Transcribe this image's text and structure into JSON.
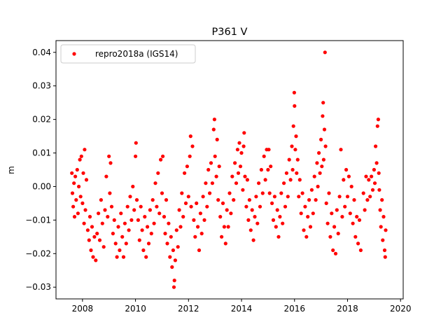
{
  "chart_data": {
    "type": "scatter",
    "title": "P361 V",
    "xlabel": "",
    "ylabel": "m",
    "xlim": [
      2007.0,
      2020.1
    ],
    "ylim": [
      -0.0335,
      0.0435
    ],
    "xticks": [
      2008,
      2010,
      2012,
      2014,
      2016,
      2018,
      2020
    ],
    "xtick_labels": [
      "2008",
      "2010",
      "2012",
      "2014",
      "2016",
      "2018",
      "2020"
    ],
    "yticks": [
      -0.03,
      -0.02,
      -0.01,
      0.0,
      0.01,
      0.02,
      0.03,
      0.04
    ],
    "ytick_labels": [
      "−0.03",
      "−0.02",
      "−0.01",
      "0.00",
      "0.01",
      "0.02",
      "0.03",
      "0.04"
    ],
    "grid": false,
    "legend_position": "top-left",
    "series": [
      {
        "name": "repro2018a (IGS14)",
        "color": "#ff0000",
        "marker": "circle",
        "points": [
          [
            2007.6,
            0.004
          ],
          [
            2007.62,
            -0.002
          ],
          [
            2007.65,
            -0.006
          ],
          [
            2007.68,
            0.001
          ],
          [
            2007.7,
            -0.009
          ],
          [
            2007.73,
            0.003
          ],
          [
            2007.76,
            -0.004
          ],
          [
            2007.8,
            0.005
          ],
          [
            2007.83,
            -0.008
          ],
          [
            2007.86,
            0.0
          ],
          [
            2007.9,
            0.008
          ],
          [
            2007.93,
            -0.003
          ],
          [
            2007.96,
            0.009
          ],
          [
            2008.0,
            -0.005
          ],
          [
            2008.03,
            0.004
          ],
          [
            2008.06,
            -0.011
          ],
          [
            2008.08,
            0.011
          ],
          [
            2008.11,
            -0.007
          ],
          [
            2008.15,
            0.002
          ],
          [
            2008.2,
            -0.013
          ],
          [
            2008.25,
            -0.016
          ],
          [
            2008.28,
            -0.009
          ],
          [
            2008.32,
            -0.019
          ],
          [
            2008.36,
            -0.012
          ],
          [
            2008.4,
            -0.021
          ],
          [
            2008.45,
            -0.015
          ],
          [
            2008.5,
            -0.022
          ],
          [
            2008.55,
            -0.014
          ],
          [
            2008.6,
            -0.008
          ],
          [
            2008.65,
            -0.016
          ],
          [
            2008.7,
            -0.004
          ],
          [
            2008.75,
            -0.011
          ],
          [
            2008.8,
            -0.018
          ],
          [
            2008.85,
            -0.007
          ],
          [
            2008.9,
            0.003
          ],
          [
            2008.95,
            -0.009
          ],
          [
            2009.0,
            0.009
          ],
          [
            2009.03,
            -0.002
          ],
          [
            2009.06,
            0.007
          ],
          [
            2009.1,
            -0.006
          ],
          [
            2009.15,
            -0.014
          ],
          [
            2009.2,
            -0.01
          ],
          [
            2009.25,
            -0.017
          ],
          [
            2009.3,
            -0.021
          ],
          [
            2009.35,
            -0.012
          ],
          [
            2009.4,
            -0.019
          ],
          [
            2009.45,
            -0.008
          ],
          [
            2009.5,
            -0.015
          ],
          [
            2009.55,
            -0.021
          ],
          [
            2009.6,
            -0.011
          ],
          [
            2009.65,
            -0.017
          ],
          [
            2009.7,
            -0.006
          ],
          [
            2009.75,
            -0.013
          ],
          [
            2009.8,
            -0.003
          ],
          [
            2009.85,
            -0.01
          ],
          [
            2009.9,
            0.0
          ],
          [
            2009.95,
            -0.007
          ],
          [
            2010.0,
            0.009
          ],
          [
            2010.02,
            0.013
          ],
          [
            2010.05,
            -0.004
          ],
          [
            2010.1,
            -0.01
          ],
          [
            2010.15,
            -0.016
          ],
          [
            2010.2,
            -0.006
          ],
          [
            2010.25,
            -0.013
          ],
          [
            2010.3,
            -0.019
          ],
          [
            2010.35,
            -0.009
          ],
          [
            2010.4,
            -0.021
          ],
          [
            2010.45,
            -0.012
          ],
          [
            2010.5,
            -0.017
          ],
          [
            2010.55,
            -0.007
          ],
          [
            2010.6,
            -0.014
          ],
          [
            2010.65,
            -0.004
          ],
          [
            2010.7,
            -0.011
          ],
          [
            2010.75,
            0.001
          ],
          [
            2010.8,
            -0.006
          ],
          [
            2010.85,
            0.004
          ],
          [
            2010.9,
            -0.008
          ],
          [
            2010.95,
            0.008
          ],
          [
            2011.0,
            -0.002
          ],
          [
            2011.03,
            0.009
          ],
          [
            2011.08,
            -0.009
          ],
          [
            2011.12,
            -0.014
          ],
          [
            2011.16,
            -0.004
          ],
          [
            2011.2,
            -0.017
          ],
          [
            2011.25,
            -0.011
          ],
          [
            2011.3,
            -0.021
          ],
          [
            2011.34,
            -0.015
          ],
          [
            2011.38,
            -0.024
          ],
          [
            2011.42,
            -0.019
          ],
          [
            2011.45,
            -0.03
          ],
          [
            2011.47,
            -0.028
          ],
          [
            2011.5,
            -0.022
          ],
          [
            2011.55,
            -0.013
          ],
          [
            2011.6,
            -0.018
          ],
          [
            2011.65,
            -0.007
          ],
          [
            2011.7,
            -0.012
          ],
          [
            2011.75,
            -0.002
          ],
          [
            2011.8,
            -0.009
          ],
          [
            2011.85,
            0.004
          ],
          [
            2011.9,
            -0.005
          ],
          [
            2011.95,
            0.006
          ],
          [
            2012.0,
            -0.003
          ],
          [
            2012.05,
            0.009
          ],
          [
            2012.08,
            0.015
          ],
          [
            2012.1,
            -0.006
          ],
          [
            2012.15,
            0.012
          ],
          [
            2012.2,
            -0.01
          ],
          [
            2012.25,
            -0.015
          ],
          [
            2012.3,
            -0.005
          ],
          [
            2012.35,
            -0.012
          ],
          [
            2012.4,
            -0.019
          ],
          [
            2012.45,
            -0.008
          ],
          [
            2012.5,
            -0.014
          ],
          [
            2012.55,
            -0.003
          ],
          [
            2012.6,
            -0.01
          ],
          [
            2012.65,
            0.001
          ],
          [
            2012.7,
            -0.006
          ],
          [
            2012.75,
            0.005
          ],
          [
            2012.8,
            -0.002
          ],
          [
            2012.85,
            0.007
          ],
          [
            2012.9,
            0.001
          ],
          [
            2012.95,
            0.017
          ],
          [
            2012.98,
            0.02
          ],
          [
            2013.0,
            0.009
          ],
          [
            2013.05,
            0.003
          ],
          [
            2013.08,
            0.014
          ],
          [
            2013.12,
            -0.004
          ],
          [
            2013.16,
            0.006
          ],
          [
            2013.2,
            -0.009
          ],
          [
            2013.25,
            -0.015
          ],
          [
            2013.3,
            -0.005
          ],
          [
            2013.35,
            -0.012
          ],
          [
            2013.4,
            -0.017
          ],
          [
            2013.45,
            -0.007
          ],
          [
            2013.5,
            -0.012
          ],
          [
            2013.55,
            -0.002
          ],
          [
            2013.6,
            -0.008
          ],
          [
            2013.65,
            0.003
          ],
          [
            2013.7,
            -0.004
          ],
          [
            2013.75,
            0.007
          ],
          [
            2013.8,
            0.001
          ],
          [
            2013.85,
            0.011
          ],
          [
            2013.88,
            0.004
          ],
          [
            2013.92,
            0.013
          ],
          [
            2013.96,
            0.006
          ],
          [
            2014.0,
            0.01
          ],
          [
            2014.05,
            -0.001
          ],
          [
            2014.08,
            0.012
          ],
          [
            2014.1,
            0.016
          ],
          [
            2014.13,
            0.003
          ],
          [
            2014.18,
            -0.006
          ],
          [
            2014.22,
            0.002
          ],
          [
            2014.26,
            -0.01
          ],
          [
            2014.3,
            -0.004
          ],
          [
            2014.35,
            -0.013
          ],
          [
            2014.4,
            -0.007
          ],
          [
            2014.45,
            -0.016
          ],
          [
            2014.5,
            -0.009
          ],
          [
            2014.55,
            -0.003
          ],
          [
            2014.6,
            -0.011
          ],
          [
            2014.65,
            0.001
          ],
          [
            2014.7,
            -0.006
          ],
          [
            2014.75,
            0.005
          ],
          [
            2014.8,
            -0.002
          ],
          [
            2014.85,
            0.009
          ],
          [
            2014.9,
            0.002
          ],
          [
            2014.95,
            0.011
          ],
          [
            2015.0,
            0.005
          ],
          [
            2015.03,
            0.011
          ],
          [
            2015.06,
            -0.002
          ],
          [
            2015.1,
            0.006
          ],
          [
            2015.15,
            -0.005
          ],
          [
            2015.2,
            -0.01
          ],
          [
            2015.25,
            -0.003
          ],
          [
            2015.3,
            -0.012
          ],
          [
            2015.35,
            -0.007
          ],
          [
            2015.4,
            -0.015
          ],
          [
            2015.45,
            -0.009
          ],
          [
            2015.5,
            -0.002
          ],
          [
            2015.55,
            -0.011
          ],
          [
            2015.6,
            0.001
          ],
          [
            2015.65,
            -0.006
          ],
          [
            2015.7,
            0.004
          ],
          [
            2015.75,
            -0.003
          ],
          [
            2015.8,
            0.008
          ],
          [
            2015.85,
            0.002
          ],
          [
            2015.9,
            0.012
          ],
          [
            2015.93,
            0.005
          ],
          [
            2015.96,
            0.018
          ],
          [
            2015.99,
            0.028
          ],
          [
            2016.0,
            0.024
          ],
          [
            2016.03,
            0.011
          ],
          [
            2016.06,
            0.015
          ],
          [
            2016.08,
            0.004
          ],
          [
            2016.12,
            0.008
          ],
          [
            2016.16,
            -0.003
          ],
          [
            2016.2,
            0.002
          ],
          [
            2016.25,
            -0.008
          ],
          [
            2016.3,
            -0.002
          ],
          [
            2016.35,
            -0.013
          ],
          [
            2016.4,
            -0.006
          ],
          [
            2016.45,
            -0.015
          ],
          [
            2016.5,
            -0.009
          ],
          [
            2016.55,
            -0.004
          ],
          [
            2016.6,
            -0.012
          ],
          [
            2016.65,
            -0.001
          ],
          [
            2016.7,
            -0.008
          ],
          [
            2016.75,
            0.003
          ],
          [
            2016.8,
            -0.004
          ],
          [
            2016.85,
            0.007
          ],
          [
            2016.88,
            0.0
          ],
          [
            2016.92,
            0.01
          ],
          [
            2016.96,
            0.004
          ],
          [
            2017.0,
            0.014
          ],
          [
            2017.03,
            0.006
          ],
          [
            2017.06,
            0.021
          ],
          [
            2017.08,
            0.025
          ],
          [
            2017.1,
            0.008
          ],
          [
            2017.13,
            0.017
          ],
          [
            2017.15,
            0.04
          ],
          [
            2017.17,
            0.012
          ],
          [
            2017.2,
            -0.005
          ],
          [
            2017.25,
            -0.011
          ],
          [
            2017.3,
            -0.002
          ],
          [
            2017.35,
            -0.015
          ],
          [
            2017.4,
            -0.008
          ],
          [
            2017.45,
            -0.019
          ],
          [
            2017.5,
            -0.012
          ],
          [
            2017.55,
            -0.02
          ],
          [
            2017.6,
            -0.007
          ],
          [
            2017.65,
            -0.014
          ],
          [
            2017.7,
            -0.003
          ],
          [
            2017.75,
            0.011
          ],
          [
            2017.8,
            -0.009
          ],
          [
            2017.85,
            0.002
          ],
          [
            2017.9,
            -0.006
          ],
          [
            2017.95,
            0.005
          ],
          [
            2018.0,
            -0.003
          ],
          [
            2018.05,
            0.003
          ],
          [
            2018.1,
            -0.008
          ],
          [
            2018.15,
            0.0
          ],
          [
            2018.2,
            -0.011
          ],
          [
            2018.25,
            -0.004
          ],
          [
            2018.3,
            -0.015
          ],
          [
            2018.35,
            -0.009
          ],
          [
            2018.4,
            -0.017
          ],
          [
            2018.45,
            -0.01
          ],
          [
            2018.5,
            -0.019
          ],
          [
            2018.6,
            -0.002
          ],
          [
            2018.65,
            -0.007
          ],
          [
            2018.7,
            0.003
          ],
          [
            2018.75,
            -0.004
          ],
          [
            2018.8,
            0.002
          ],
          [
            2018.85,
            -0.003
          ],
          [
            2018.9,
            0.003
          ],
          [
            2018.95,
            -0.001
          ],
          [
            2019.0,
            0.005
          ],
          [
            2019.03,
            0.001
          ],
          [
            2019.06,
            0.012
          ],
          [
            2019.1,
            0.007
          ],
          [
            2019.13,
            0.018
          ],
          [
            2019.16,
            0.02
          ],
          [
            2019.18,
            0.004
          ],
          [
            2019.2,
            -0.001
          ],
          [
            2019.23,
            -0.007
          ],
          [
            2019.26,
            -0.012
          ],
          [
            2019.3,
            -0.004
          ],
          [
            2019.33,
            -0.016
          ],
          [
            2019.36,
            -0.009
          ],
          [
            2019.4,
            -0.019
          ],
          [
            2019.42,
            -0.021
          ],
          [
            2019.44,
            -0.013
          ]
        ]
      }
    ]
  }
}
